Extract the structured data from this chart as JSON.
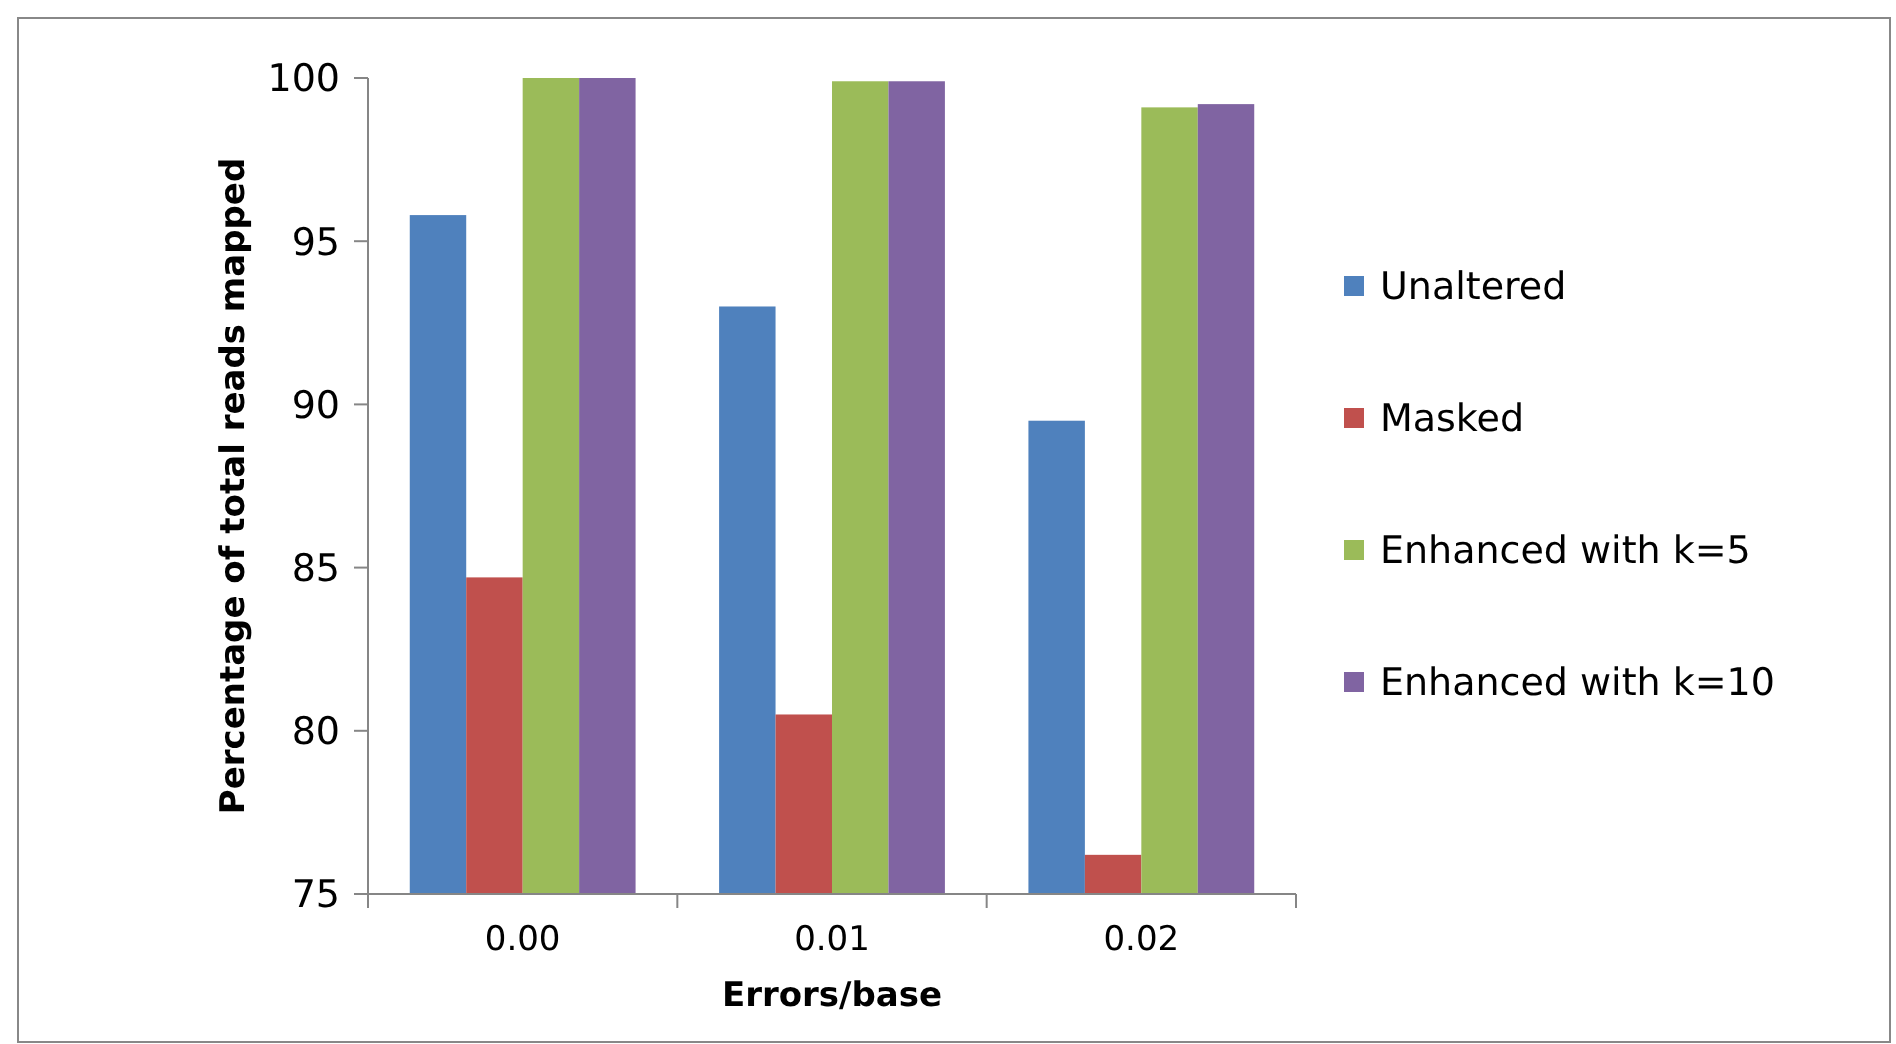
{
  "chart_data": {
    "type": "bar",
    "xlabel": "Errors/base",
    "ylabel": "Percentage of total reads mapped",
    "categories": [
      "0.00",
      "0.01",
      "0.02"
    ],
    "series": [
      {
        "name": "Unaltered",
        "color": "#4f81bd",
        "values": [
          95.8,
          93.0,
          89.5
        ]
      },
      {
        "name": "Masked",
        "color": "#c0504d",
        "values": [
          84.7,
          80.5,
          76.2
        ]
      },
      {
        "name": "Enhanced with k=5",
        "color": "#9bbb59",
        "values": [
          100,
          99.9,
          99.1
        ]
      },
      {
        "name": "Enhanced with k=10",
        "color": "#8064a2",
        "values": [
          100,
          99.9,
          99.2
        ]
      }
    ],
    "ylim": [
      75,
      100
    ],
    "yticks": [
      75,
      80,
      85,
      90,
      95,
      100
    ],
    "grid": false,
    "legend": "right"
  }
}
